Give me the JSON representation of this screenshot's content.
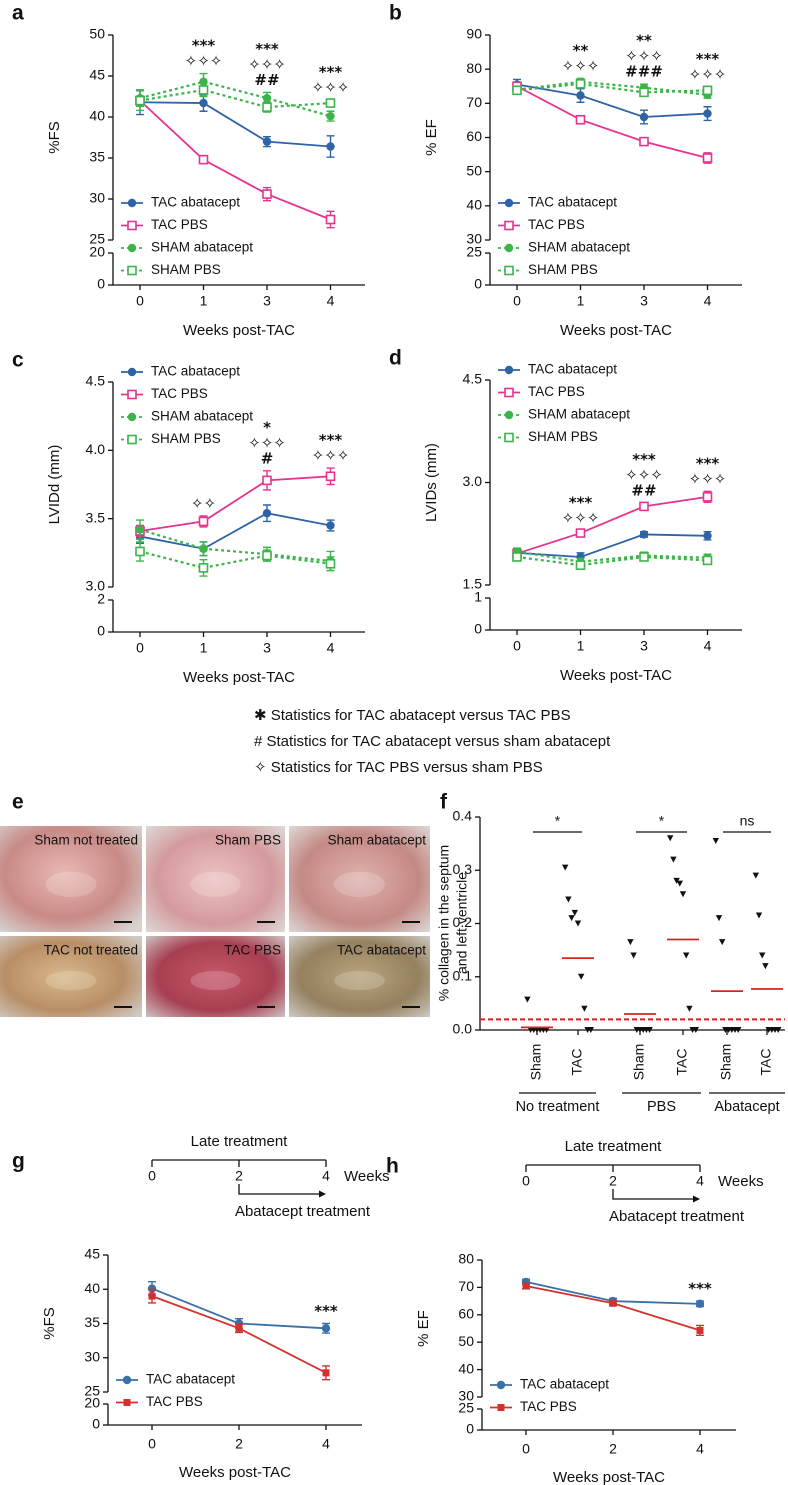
{
  "chart_data": [
    {
      "type": "line",
      "panel": "a",
      "ylabel": "%FS",
      "xlabel": "Weeks post-TAC",
      "categories": [
        "0",
        "1",
        "3",
        "4"
      ],
      "ylim": [
        25,
        50
      ],
      "yticks": [
        25,
        30,
        35,
        40,
        45,
        50
      ],
      "ylim_lower": [
        0,
        20
      ],
      "yticks_lower": [
        0,
        20
      ],
      "legend": "lower left",
      "series": [
        {
          "name": "TAC abatacept",
          "color": "#2e63a6",
          "marker": "circle",
          "dashed": false,
          "values": [
            41.8,
            41.7,
            37.0,
            36.4
          ],
          "errors": [
            1.5,
            1.0,
            0.6,
            1.3
          ]
        },
        {
          "name": "TAC PBS",
          "color": "#e6338f",
          "marker": "square",
          "dashed": false,
          "values": [
            42.0,
            34.8,
            30.6,
            27.5
          ],
          "errors": [
            0.5,
            0.4,
            0.8,
            1.0
          ]
        },
        {
          "name": "SHAM abatacept",
          "color": "#3bb54a",
          "marker": "circle",
          "dashed": true,
          "values": [
            42.3,
            44.3,
            42.3,
            40.1
          ],
          "errors": [
            1.0,
            1.0,
            0.7,
            0.6
          ]
        },
        {
          "name": "SHAM PBS",
          "color": "#3bb54a",
          "marker": "square",
          "dashed": true,
          "values": [
            42.0,
            43.3,
            41.2,
            41.7
          ],
          "errors": [
            1.2,
            0.8,
            0.6,
            0.4
          ]
        }
      ],
      "significance": [
        null,
        [
          "***",
          "✧✧✧"
        ],
        [
          "***",
          "✧✧✧",
          "##"
        ],
        [
          "***",
          "✧✧✧"
        ]
      ]
    },
    {
      "type": "line",
      "panel": "b",
      "ylabel": "% EF",
      "xlabel": "Weeks post-TAC",
      "categories": [
        "0",
        "1",
        "3",
        "4"
      ],
      "ylim": [
        30,
        90
      ],
      "yticks": [
        30,
        40,
        50,
        60,
        70,
        80,
        90
      ],
      "ylim_lower": [
        0,
        25
      ],
      "yticks_lower": [
        0,
        25
      ],
      "legend": "lower left",
      "series": [
        {
          "name": "TAC abatacept",
          "color": "#2e63a6",
          "marker": "circle",
          "dashed": false,
          "values": [
            75.5,
            72.3,
            66.0,
            67.0
          ],
          "errors": [
            1.5,
            2.0,
            2.0,
            2.0
          ]
        },
        {
          "name": "TAC PBS",
          "color": "#e6338f",
          "marker": "square",
          "dashed": false,
          "values": [
            75.0,
            65.2,
            58.8,
            54.0
          ],
          "errors": [
            1.0,
            1.0,
            1.0,
            1.5
          ]
        },
        {
          "name": "SHAM abatacept",
          "color": "#3bb54a",
          "marker": "circle",
          "dashed": true,
          "values": [
            74.0,
            76.3,
            74.6,
            72.5
          ],
          "errors": [
            1.0,
            1.0,
            1.0,
            1.0
          ]
        },
        {
          "name": "SHAM PBS",
          "color": "#3bb54a",
          "marker": "square",
          "dashed": true,
          "values": [
            73.8,
            75.7,
            73.2,
            73.8
          ],
          "errors": [
            1.0,
            1.0,
            1.0,
            1.0
          ]
        }
      ],
      "significance": [
        null,
        [
          "**",
          "✧✧✧"
        ],
        [
          "**",
          "✧✧✧",
          "###"
        ],
        [
          "***",
          "✧✧✧"
        ]
      ]
    },
    {
      "type": "line",
      "panel": "c",
      "ylabel": "LVIDd (mm)",
      "xlabel": "Weeks post-TAC",
      "categories": [
        "0",
        "1",
        "3",
        "4"
      ],
      "ylim": [
        3,
        4.5
      ],
      "yticks": [
        {
          "value": 3,
          "label": "3.0"
        },
        3.5,
        {
          "value": 4,
          "label": "4.0"
        },
        4.5
      ],
      "ylim_lower": [
        0,
        2
      ],
      "yticks_lower": [
        0,
        2
      ],
      "legend": "upper left",
      "series": [
        {
          "name": "TAC abatacept",
          "color": "#2e63a6",
          "marker": "circle",
          "dashed": false,
          "values": [
            3.37,
            3.28,
            3.54,
            3.45
          ],
          "errors": [
            0.05,
            0.05,
            0.06,
            0.04
          ]
        },
        {
          "name": "TAC PBS",
          "color": "#e6338f",
          "marker": "square",
          "dashed": false,
          "values": [
            3.41,
            3.48,
            3.78,
            3.81
          ],
          "errors": [
            0.04,
            0.04,
            0.07,
            0.06
          ]
        },
        {
          "name": "SHAM abatacept",
          "color": "#3bb54a",
          "marker": "circle",
          "dashed": true,
          "values": [
            3.42,
            3.28,
            3.24,
            3.19
          ],
          "errors": [
            0.07,
            0.05,
            0.05,
            0.07
          ]
        },
        {
          "name": "SHAM PBS",
          "color": "#3bb54a",
          "marker": "square",
          "dashed": true,
          "values": [
            3.26,
            3.14,
            3.23,
            3.17
          ],
          "errors": [
            0.07,
            0.06,
            0.04,
            0.05
          ]
        }
      ],
      "significance": [
        null,
        [
          "✧✧"
        ],
        [
          "*",
          "✧✧✧",
          "#"
        ],
        [
          "***",
          "✧✧✧"
        ]
      ]
    },
    {
      "type": "line",
      "panel": "d",
      "ylabel": "LVIDs (mm)",
      "xlabel": "Weeks post-TAC",
      "categories": [
        "0",
        "1",
        "3",
        "4"
      ],
      "ylim": [
        1.5,
        4.5
      ],
      "yticks": [
        1.5,
        {
          "value": 3,
          "label": "3.0"
        },
        4.5
      ],
      "ylim_lower": [
        0,
        1
      ],
      "yticks_lower": [
        0,
        1
      ],
      "legend": "upper left",
      "series": [
        {
          "name": "TAC abatacept",
          "color": "#2e63a6",
          "marker": "circle",
          "dashed": false,
          "values": [
            1.97,
            1.91,
            2.24,
            2.22
          ],
          "errors": [
            0.06,
            0.06,
            0.04,
            0.06
          ]
        },
        {
          "name": "TAC PBS",
          "color": "#e6338f",
          "marker": "square",
          "dashed": false,
          "values": [
            1.96,
            2.26,
            2.65,
            2.79
          ],
          "errors": [
            0.04,
            0.04,
            0.05,
            0.08
          ]
        },
        {
          "name": "SHAM abatacept",
          "color": "#3bb54a",
          "marker": "circle",
          "dashed": true,
          "values": [
            1.99,
            1.84,
            1.93,
            1.9
          ],
          "errors": [
            0.05,
            0.05,
            0.05,
            0.05
          ]
        },
        {
          "name": "SHAM PBS",
          "color": "#3bb54a",
          "marker": "square",
          "dashed": true,
          "values": [
            1.91,
            1.79,
            1.91,
            1.86
          ],
          "errors": [
            0.05,
            0.05,
            0.05,
            0.05
          ]
        }
      ],
      "significance": [
        null,
        [
          "***",
          "✧✧✧"
        ],
        [
          "***",
          "✧✧✧",
          "##"
        ],
        [
          "***",
          "✧✧✧"
        ]
      ]
    },
    {
      "type": "photos",
      "panel": "e",
      "labels": [
        "Sham not treated",
        "Sham PBS",
        "Sham abatacept",
        "TAC not treated",
        "TAC PBS",
        "TAC abatacept"
      ]
    },
    {
      "type": "dot",
      "panel": "f",
      "ylabel": [
        "% collagen in the septum",
        "and left ventricle"
      ],
      "ylim": [
        0,
        0.4
      ],
      "yticks": [
        {
          "value": 0,
          "label": "0.0"
        },
        0.1,
        0.2,
        0.3,
        0.4
      ],
      "threshold": 0.02,
      "mean_color": "#e02020",
      "groups": [
        {
          "name": "No treatment",
          "significance": "*",
          "subgroups": [
            {
              "name": "Sham",
              "values": [
                0.057,
                0,
                0,
                0,
                0,
                0,
                0
              ],
              "mean": 0.005
            },
            {
              "name": "TAC",
              "values": [
                0.305,
                0.245,
                0.21,
                0.22,
                0.2,
                0.1,
                0.04,
                0,
                0
              ],
              "mean": 0.135
            }
          ]
        },
        {
          "name": "PBS",
          "significance": "*",
          "subgroups": [
            {
              "name": "Sham",
              "values": [
                0.165,
                0.14,
                0,
                0,
                0,
                0,
                0
              ],
              "mean": 0.03
            },
            {
              "name": "TAC",
              "values": [
                0.36,
                0.32,
                0.28,
                0.275,
                0.255,
                0.14,
                0.04,
                0,
                0
              ],
              "mean": 0.17
            }
          ]
        },
        {
          "name": "Abatacept",
          "significance": "ns",
          "subgroups": [
            {
              "name": "Sham",
              "values": [
                0.355,
                0.21,
                0.165,
                0,
                0,
                0,
                0,
                0
              ],
              "mean": 0.073
            },
            {
              "name": "TAC",
              "values": [
                0.29,
                0.215,
                0.14,
                0.12,
                0,
                0,
                0,
                0
              ],
              "mean": 0.077
            }
          ]
        }
      ]
    },
    {
      "type": "line",
      "panel": "g",
      "ylabel": "%FS",
      "xlabel": "Weeks post-TAC",
      "categories": [
        "0",
        "2",
        "4"
      ],
      "ylim": [
        25,
        45
      ],
      "yticks": [
        25,
        30,
        35,
        40,
        45
      ],
      "ylim_lower": [
        0,
        20
      ],
      "yticks_lower": [
        0,
        20
      ],
      "legend": "lower left",
      "timeline": {
        "title": "Late treatment",
        "ticks": [
          0,
          2,
          4
        ],
        "unit": "Weeks",
        "start": 2,
        "label": "Abatacept treatment"
      },
      "series": [
        {
          "name": "TAC abatacept",
          "color": "#3a6fa8",
          "marker": "circle",
          "dashed": false,
          "values": [
            40.1,
            35.0,
            34.3
          ],
          "errors": [
            1.0,
            0.7,
            0.7
          ]
        },
        {
          "name": "TAC PBS",
          "color": "#d2322d",
          "marker": "filled-square",
          "dashed": false,
          "values": [
            39.0,
            34.3,
            27.8
          ],
          "errors": [
            1.0,
            0.6,
            1.0
          ]
        }
      ],
      "significance": [
        null,
        null,
        [
          "***"
        ]
      ]
    },
    {
      "type": "line",
      "panel": "h",
      "ylabel": "% EF",
      "xlabel": "Weeks post-TAC",
      "categories": [
        "0",
        "2",
        "4"
      ],
      "ylim": [
        30,
        80
      ],
      "yticks": [
        30,
        40,
        50,
        60,
        70,
        80
      ],
      "ylim_lower": [
        0,
        25
      ],
      "yticks_lower": [
        0,
        25
      ],
      "legend": "lower left",
      "timeline": {
        "title": "Late treatment",
        "ticks": [
          0,
          2,
          4
        ],
        "unit": "Weeks",
        "start": 2,
        "label": "Abatacept treatment"
      },
      "series": [
        {
          "name": "TAC abatacept",
          "color": "#3a6fa8",
          "marker": "circle",
          "dashed": false,
          "values": [
            72.0,
            65.0,
            64.0
          ],
          "errors": [
            1.0,
            1.0,
            1.0
          ]
        },
        {
          "name": "TAC PBS",
          "color": "#d2322d",
          "marker": "filled-square",
          "dashed": false,
          "values": [
            70.5,
            64.2,
            54.3
          ],
          "errors": [
            1.0,
            0.8,
            1.8
          ]
        }
      ],
      "significance": [
        null,
        null,
        [
          "***"
        ]
      ]
    }
  ],
  "statistics_notes": [
    "✱ Statistics for TAC abatacept versus TAC PBS",
    "# Statistics for TAC abatacept versus sham abatacept",
    "✧ Statistics for TAC PBS versus sham PBS"
  ]
}
